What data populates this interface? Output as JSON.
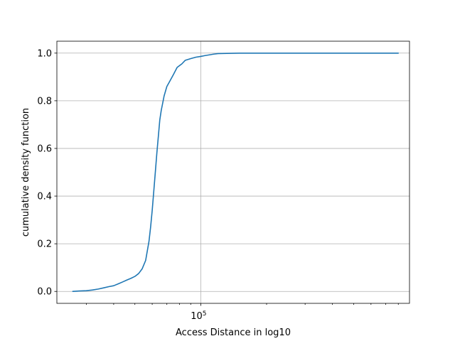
{
  "chart_data": {
    "type": "line",
    "title": "",
    "xlabel": "Access Distance in log10",
    "ylabel": "cumulative density function",
    "xscale": "log",
    "xlim": [
      22000,
      900000
    ],
    "ylim": [
      -0.05,
      1.05
    ],
    "grid": true,
    "legend": "none",
    "x_major_ticks": [
      {
        "value": 100000,
        "label": "10",
        "exponent": "5"
      }
    ],
    "x_minor_ticks": [
      30000,
      40000,
      50000,
      60000,
      70000,
      80000,
      90000,
      200000,
      300000,
      400000,
      500000,
      600000,
      700000,
      800000
    ],
    "y_ticks": [
      {
        "value": 0.0,
        "label": "0.0"
      },
      {
        "value": 0.2,
        "label": "0.2"
      },
      {
        "value": 0.4,
        "label": "0.4"
      },
      {
        "value": 0.6,
        "label": "0.6"
      },
      {
        "value": 0.8,
        "label": "0.8"
      },
      {
        "value": 1.0,
        "label": "1.0"
      }
    ],
    "series": [
      {
        "color": "#1f77b4",
        "x": [
          26000,
          28000,
          30000,
          32000,
          34000,
          36000,
          38000,
          40000,
          42000,
          44000,
          46000,
          48000,
          50000,
          52000,
          54000,
          56000,
          58000,
          59000,
          60000,
          61000,
          62000,
          63000,
          64000,
          65000,
          66000,
          67000,
          68000,
          70000,
          72000,
          75000,
          78000,
          82000,
          85000,
          90000,
          95000,
          100000,
          105000,
          110000,
          115000,
          120000,
          150000,
          200000,
          300000,
          500000,
          700000,
          800000
        ],
        "y": [
          0.0,
          0.002,
          0.003,
          0.006,
          0.01,
          0.015,
          0.02,
          0.024,
          0.032,
          0.04,
          0.048,
          0.055,
          0.063,
          0.075,
          0.095,
          0.13,
          0.21,
          0.27,
          0.34,
          0.42,
          0.5,
          0.58,
          0.65,
          0.72,
          0.76,
          0.79,
          0.82,
          0.86,
          0.88,
          0.91,
          0.94,
          0.955,
          0.97,
          0.977,
          0.983,
          0.986,
          0.99,
          0.993,
          0.996,
          0.998,
          1.0,
          1.0,
          1.0,
          1.0,
          1.0,
          1.0
        ]
      }
    ]
  }
}
